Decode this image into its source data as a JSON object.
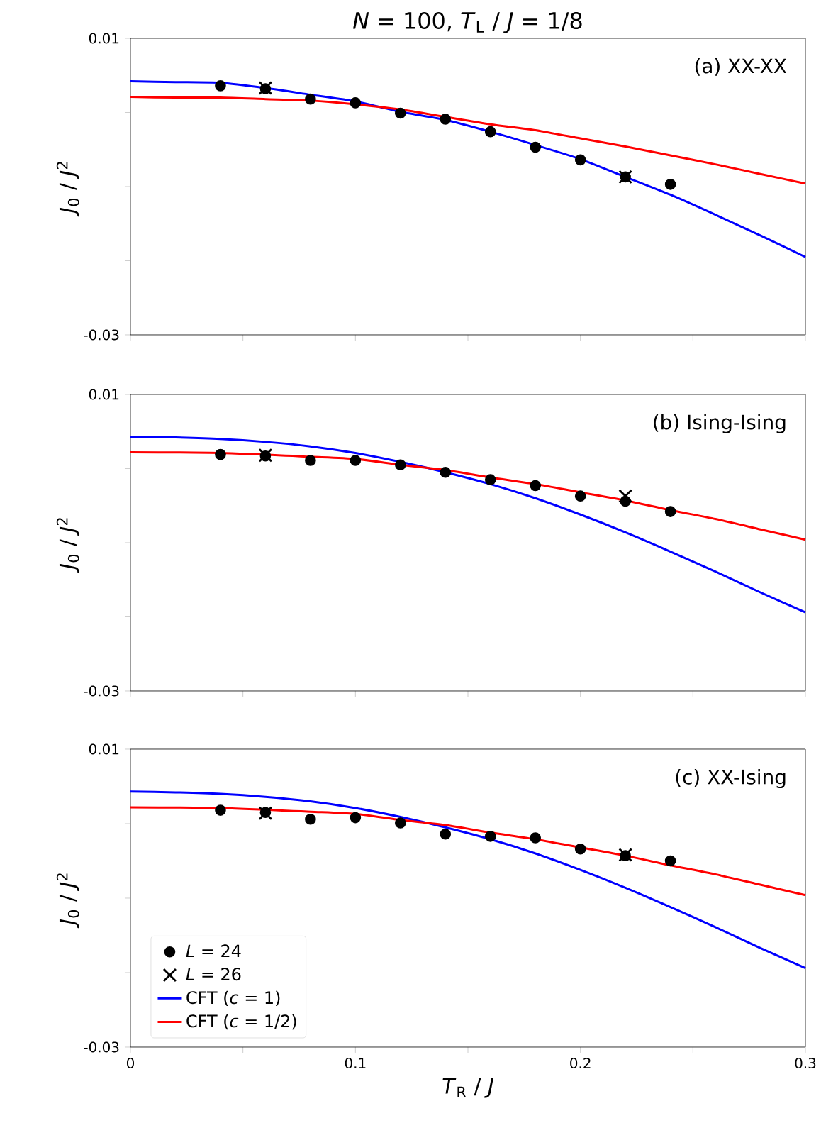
{
  "chart_data": [
    {
      "type": "line",
      "title": "*N* = 100, *T*$_{L}$ / *J* = 1/8",
      "ylabel": "*J*$_{0}$ / *J*$^{2}$",
      "annotations": [
        "(a) XX-XX"
      ],
      "xlim": [
        0,
        0.3
      ],
      "ylim": [
        -0.03,
        0.01
      ],
      "xticks": [
        0,
        {
          "value": 0.05,
          "label": null
        },
        0.1,
        {
          "value": 0.15,
          "label": null
        },
        0.2,
        {
          "value": 0.25,
          "label": null
        },
        0.3
      ],
      "yticks": [
        -0.03,
        {
          "value": -0.02,
          "label": null
        },
        {
          "value": -0.01,
          "label": null
        },
        {
          "value": 0,
          "label": null
        },
        0.01
      ],
      "tick_labels": "y",
      "legend": false,
      "grid": false,
      "series": [
        {
          "type": "scatter",
          "marker": "circle",
          "color": "#000000",
          "x": [
            0.04,
            0.06,
            0.08,
            0.1,
            0.12,
            0.14,
            0.16,
            0.18,
            0.2,
            0.22,
            0.24
          ],
          "values": [
            0.0036,
            0.0032,
            0.0018,
            0.0013,
            -0.0001,
            -0.0009,
            -0.0026,
            -0.0047,
            -0.0064,
            -0.0087,
            -0.0097
          ]
        },
        {
          "type": "scatter",
          "marker": "cross",
          "color": "#000000",
          "x": [
            0.06,
            0.22
          ],
          "values": [
            0.0033,
            -0.0087
          ]
        },
        {
          "marker": "none",
          "line_style": "solid",
          "color": "#0000ff",
          "x": [
            0,
            0.02,
            0.04,
            0.06,
            0.08,
            0.1,
            0.12,
            0.14,
            0.16,
            0.18,
            0.2,
            0.22,
            0.24,
            0.26,
            0.28,
            0.3
          ],
          "values": [
            0.0042,
            0.0041,
            0.004,
            0.0033,
            0.0024,
            0.0015,
            0.0001,
            -0.001,
            -0.0026,
            -0.0044,
            -0.0063,
            -0.0087,
            -0.0111,
            -0.0138,
            -0.0166,
            -0.0195
          ]
        },
        {
          "marker": "none",
          "line_style": "solid",
          "color": "#ff0000",
          "x": [
            0,
            0.02,
            0.04,
            0.06,
            0.08,
            0.1,
            0.12,
            0.14,
            0.16,
            0.18,
            0.2,
            0.22,
            0.24,
            0.26,
            0.28,
            0.3
          ],
          "values": [
            0.0021,
            0.002,
            0.002,
            0.0018,
            0.0016,
            0.0011,
            0.0004,
            -0.0006,
            -0.0016,
            -0.0024,
            -0.0035,
            -0.0046,
            -0.0058,
            -0.007,
            -0.0083,
            -0.0096
          ]
        }
      ]
    },
    {
      "type": "line",
      "ylabel": "*J*$_{0}$ / *J*$^{2}$",
      "annotations": [
        "(b) Ising-Ising"
      ],
      "xlim": [
        0,
        0.3
      ],
      "ylim": [
        -0.03,
        0.01
      ],
      "xticks": [
        0,
        {
          "value": 0.05,
          "label": null
        },
        0.1,
        {
          "value": 0.15,
          "label": null
        },
        0.2,
        {
          "value": 0.25,
          "label": null
        },
        0.3
      ],
      "yticks": [
        -0.03,
        {
          "value": -0.02,
          "label": null
        },
        {
          "value": -0.01,
          "label": null
        },
        {
          "value": 0,
          "label": null
        },
        0.01
      ],
      "tick_labels": "y",
      "legend": false,
      "grid": false,
      "series": [
        {
          "type": "scatter",
          "marker": "circle",
          "color": "#000000",
          "x": [
            0.04,
            0.06,
            0.08,
            0.1,
            0.12,
            0.14,
            0.16,
            0.18,
            0.2,
            0.22,
            0.24
          ],
          "values": [
            0.0019,
            0.0017,
            0.0011,
            0.0011,
            0.0005,
            -0.0005,
            -0.0015,
            -0.0023,
            -0.0037,
            -0.0044,
            -0.0058
          ]
        },
        {
          "type": "scatter",
          "marker": "cross",
          "color": "#000000",
          "x": [
            0.06,
            0.22
          ],
          "values": [
            0.0018,
            -0.0037
          ]
        },
        {
          "marker": "none",
          "line_style": "solid",
          "color": "#0000ff",
          "x": [
            0,
            0.02,
            0.04,
            0.06,
            0.08,
            0.1,
            0.12,
            0.14,
            0.16,
            0.18,
            0.2,
            0.22,
            0.24,
            0.26,
            0.28,
            0.3
          ],
          "values": [
            0.0043,
            0.0042,
            0.004,
            0.0036,
            0.003,
            0.0021,
            0.0009,
            -0.0005,
            -0.0021,
            -0.004,
            -0.0062,
            -0.0086,
            -0.0112,
            -0.0139,
            -0.0167,
            -0.0194
          ]
        },
        {
          "marker": "none",
          "line_style": "solid",
          "color": "#ff0000",
          "x": [
            0,
            0.04,
            0.08,
            0.1,
            0.12,
            0.14,
            0.16,
            0.18,
            0.2,
            0.22,
            0.24,
            0.26,
            0.28,
            0.3
          ],
          "values": [
            0.0022,
            0.0021,
            0.0016,
            0.0013,
            0.0005,
            -0.0002,
            -0.0012,
            -0.0021,
            -0.0032,
            -0.0043,
            -0.0056,
            -0.0068,
            -0.0082,
            -0.0096
          ]
        }
      ]
    },
    {
      "type": "line",
      "xlabel": "*T*$_{R}$ / *J*",
      "ylabel": "*J*$_{0}$ / *J*$^{2}$",
      "annotations": [
        "(c) XX-Ising"
      ],
      "xlim": [
        0,
        0.3
      ],
      "ylim": [
        -0.03,
        0.01
      ],
      "xticks": [
        0,
        {
          "value": 0.05,
          "label": null
        },
        0.1,
        {
          "value": 0.15,
          "label": null
        },
        0.2,
        {
          "value": 0.25,
          "label": null
        },
        0.3
      ],
      "yticks": [
        -0.03,
        {
          "value": -0.02,
          "label": null
        },
        {
          "value": -0.01,
          "label": null
        },
        {
          "value": 0,
          "label": null
        },
        0.01
      ],
      "legend": "bottom left",
      "grid": false,
      "series": [
        {
          "type": "scatter",
          "name": "*L* = 24",
          "marker": "circle",
          "color": "#000000",
          "x": [
            0.04,
            0.06,
            0.08,
            0.1,
            0.12,
            0.14,
            0.16,
            0.18,
            0.2,
            0.22,
            0.24
          ],
          "values": [
            0.0018,
            0.0015,
            0.0006,
            0.0008,
            0.0001,
            -0.0014,
            -0.0017,
            -0.0019,
            -0.0034,
            -0.0043,
            -0.005
          ]
        },
        {
          "type": "scatter",
          "name": "*L* = 26",
          "marker": "cross",
          "color": "#000000",
          "x": [
            0.06,
            0.22
          ],
          "values": [
            0.0014,
            -0.0042
          ]
        },
        {
          "name": "CFT (*c* = 1)",
          "marker": "none",
          "line_style": "solid",
          "color": "#0000ff",
          "x": [
            0,
            0.02,
            0.04,
            0.06,
            0.08,
            0.1,
            0.12,
            0.14,
            0.16,
            0.18,
            0.2,
            0.22,
            0.24,
            0.26,
            0.28,
            0.3
          ],
          "values": [
            0.0043,
            0.0042,
            0.004,
            0.0036,
            0.003,
            0.0021,
            0.0009,
            -0.0005,
            -0.0021,
            -0.004,
            -0.0062,
            -0.0086,
            -0.0112,
            -0.0139,
            -0.0167,
            -0.0194
          ]
        },
        {
          "name": "CFT (*c* = 1/2)",
          "marker": "none",
          "line_style": "solid",
          "color": "#ff0000",
          "x": [
            0,
            0.04,
            0.08,
            0.1,
            0.12,
            0.14,
            0.16,
            0.18,
            0.2,
            0.22,
            0.24,
            0.26,
            0.28,
            0.3
          ],
          "values": [
            0.0022,
            0.0021,
            0.0016,
            0.0013,
            0.0005,
            -0.0002,
            -0.0012,
            -0.0021,
            -0.0032,
            -0.0043,
            -0.0056,
            -0.0068,
            -0.0082,
            -0.0096
          ]
        }
      ]
    }
  ]
}
